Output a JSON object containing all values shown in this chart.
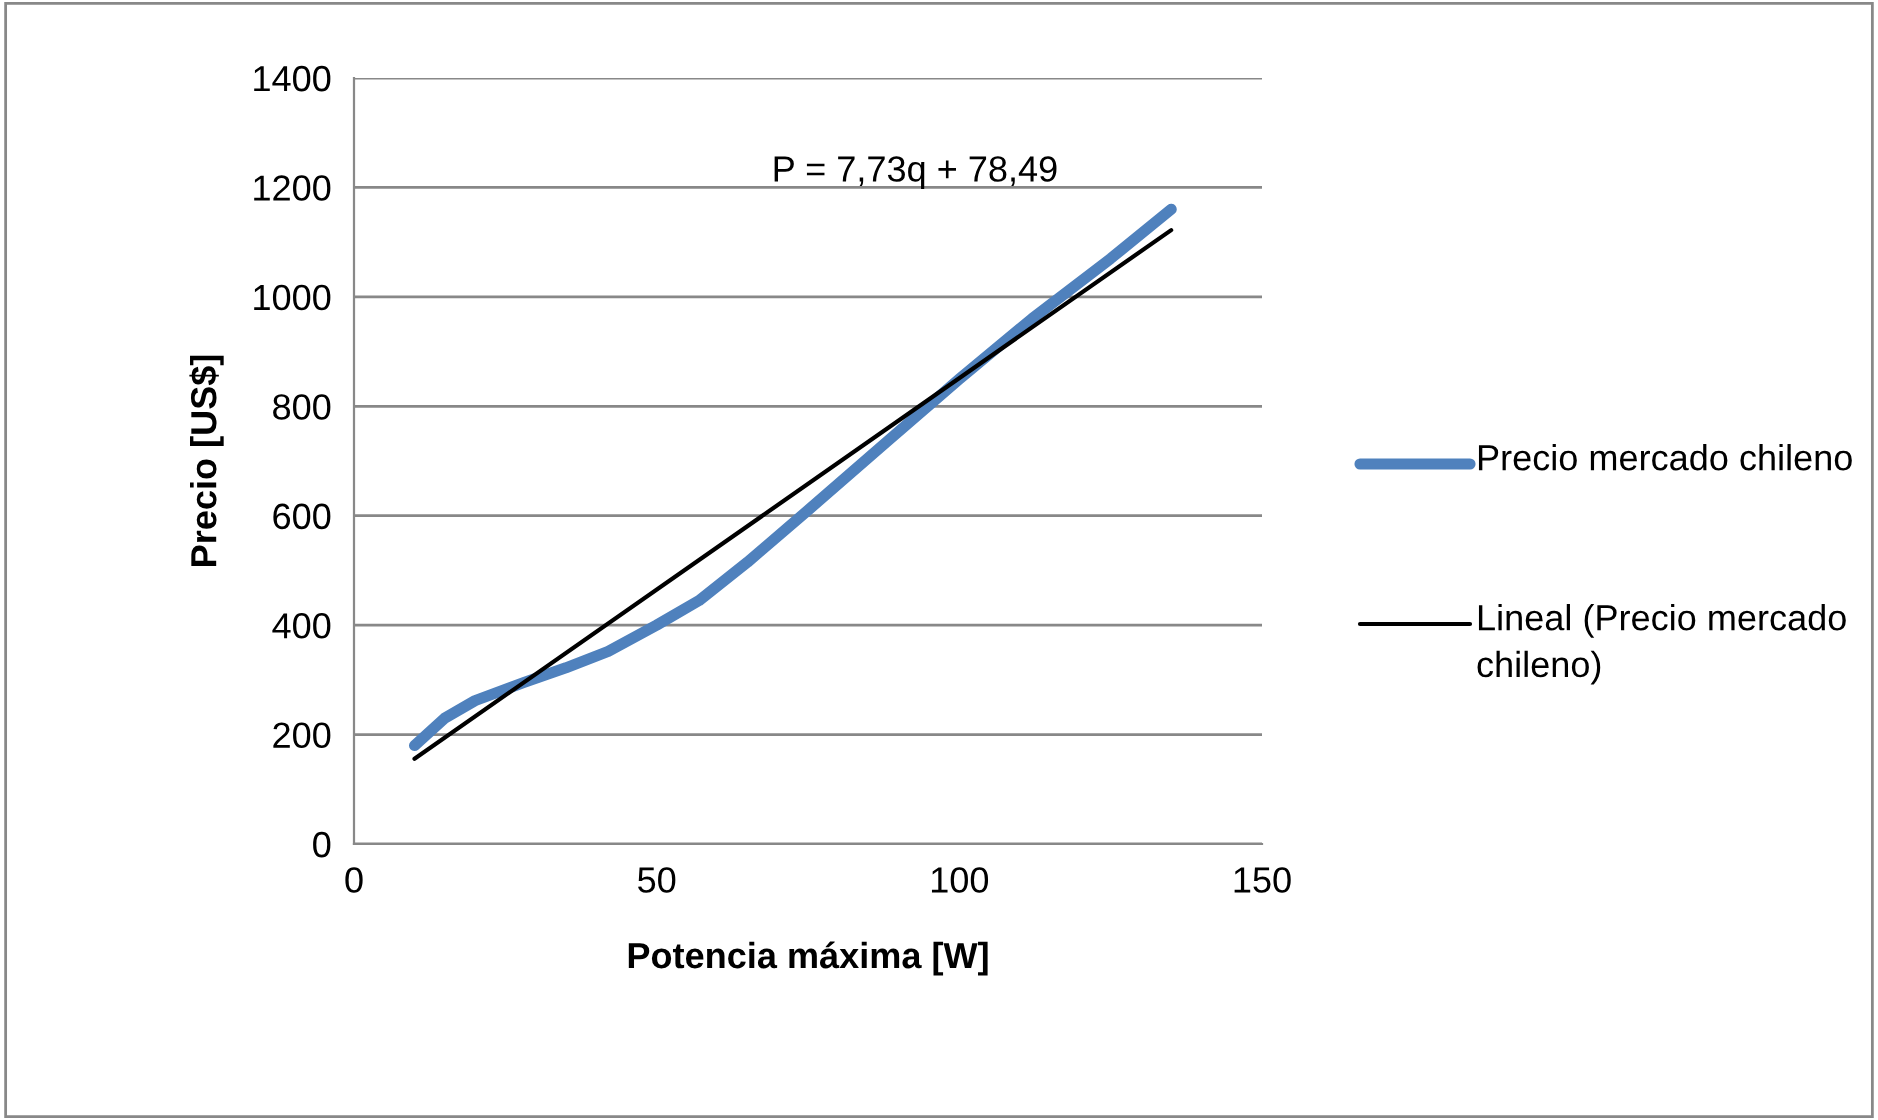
{
  "chart_data": {
    "type": "line",
    "xlabel": "Potencia máxima [W]",
    "ylabel": "Precio [US$]",
    "xlim": [
      0,
      150
    ],
    "xticks": [
      0,
      50,
      100,
      150
    ],
    "ylim": [
      0,
      1400
    ],
    "yticks": [
      0,
      200,
      400,
      600,
      800,
      1000,
      1200,
      1400
    ],
    "grid": "y",
    "legend": "right",
    "marker": "none",
    "series": [
      {
        "name": "Precio mercado chileno",
        "color": "#4f81bd",
        "x": [
          10,
          15,
          20,
          28,
          35,
          42,
          50,
          57,
          65,
          75,
          88,
          100,
          112,
          125,
          135
        ],
        "values": [
          180,
          230,
          262,
          295,
          322,
          352,
          400,
          445,
          515,
          610,
          735,
          850,
          960,
          1070,
          1160
        ]
      },
      {
        "name": "Lineal (Precio mercado chileno)",
        "color": "#000000",
        "x": [
          10,
          135
        ],
        "values": [
          155.79,
          1122.04
        ]
      }
    ],
    "annotations": [
      "P = 7,73q + 78,49"
    ]
  }
}
